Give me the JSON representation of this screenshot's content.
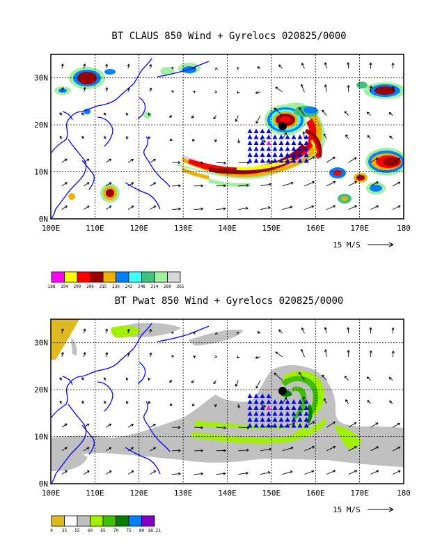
{
  "panels": [
    {
      "title": "BT CLAUS 850 Wind + Gyrelocs 020825/0000",
      "lon_labels": [
        "100E",
        "110E",
        "120E",
        "130E",
        "140E",
        "150E",
        "160E",
        "170E",
        "180"
      ],
      "lat_labels": [
        "0N",
        "10N",
        "20N",
        "30N"
      ],
      "lat_values": [
        0,
        10,
        20,
        30
      ],
      "vector_key": "15 M/S",
      "colorbar": {
        "labels": [
          "188",
          "194",
          "200",
          "206",
          "215",
          "230",
          "242",
          "248",
          "254",
          "260",
          "265"
        ],
        "colors": [
          "#ff00ff",
          "#ffff00",
          "#ff0000",
          "#9a0000",
          "#f0b000",
          "#0080ff",
          "#40ffff",
          "#40c080",
          "#a0f0a0",
          "#d8d8d8"
        ]
      },
      "fill_colors": {
        "deep": "#9a0000",
        "red": "#ff0000",
        "yellow": "#ffff00",
        "orange": "#f0b000",
        "blue": "#0080ff",
        "cyan": "#40ffff",
        "green": "#40c080",
        "lightgreen": "#a0f0a0",
        "grey": "#d8d8d8"
      }
    },
    {
      "title": "BT Pwat 850 Wind + Gyrelocs 020825/0000",
      "lon_labels": [
        "100E",
        "110E",
        "120E",
        "130E",
        "140E",
        "150E",
        "160E",
        "170E",
        "180"
      ],
      "lat_labels": [
        "0N",
        "10N",
        "20N",
        "30N"
      ],
      "lat_values": [
        0,
        10,
        20,
        30
      ],
      "vector_key": "15 M/S",
      "colorbar": {
        "labels": [
          "0",
          "35",
          "55",
          "60",
          "65",
          "70",
          "75",
          "80",
          "86.21"
        ],
        "colors": [
          "#e0b820",
          "#ffffff",
          "#c0c0c0",
          "#a0f000",
          "#40c000",
          "#008000",
          "#0080ff",
          "#8000c0"
        ]
      },
      "fill_colors": {
        "grey": "#c0c0c0",
        "lime": "#a0f000",
        "green": "#40c000",
        "dark": "#008000",
        "gold": "#e0b820"
      }
    }
  ],
  "styles": {
    "coast_color": "#0000ff",
    "gyre_marker_color": "#0000ff",
    "gyre_center_color": "#ff00ff"
  }
}
